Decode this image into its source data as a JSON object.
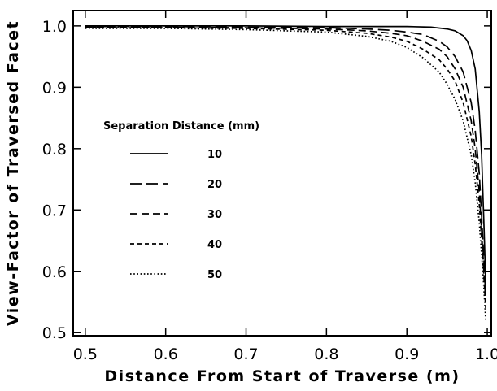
{
  "chart_data": {
    "type": "line",
    "title": "",
    "xlabel": "Distance From Start of Traverse (m)",
    "ylabel": "View-Factor of Traversed Facet",
    "xlim": [
      0.485,
      1.005
    ],
    "ylim": [
      0.495,
      1.025
    ],
    "xticks": [
      0.5,
      0.6,
      0.7,
      0.8,
      0.9,
      1.0
    ],
    "xtick_labels": [
      "0.5",
      "0.6",
      "0.7",
      "0.8",
      "0.9",
      "1.0"
    ],
    "yticks": [
      0.5,
      0.6,
      0.7,
      0.8,
      0.9,
      1.0
    ],
    "ytick_labels": [
      "0.5",
      "0.6",
      "0.7",
      "0.8",
      "0.9",
      "1.0"
    ],
    "grid": false,
    "legend": {
      "title": "Separation Distance (mm)",
      "placement": "center-left"
    },
    "series": [
      {
        "name": "10",
        "line_style": "solid",
        "x": [
          0.5,
          0.6,
          0.7,
          0.8,
          0.9,
          0.93,
          0.95,
          0.96,
          0.97,
          0.975,
          0.98,
          0.985,
          0.99,
          0.993,
          0.996,
          0.998
        ],
        "y": [
          1.0,
          1.0,
          1.0,
          0.999,
          0.999,
          0.998,
          0.995,
          0.992,
          0.984,
          0.976,
          0.96,
          0.93,
          0.86,
          0.79,
          0.67,
          0.58
        ]
      },
      {
        "name": "20",
        "line_style": "long-dash",
        "x": [
          0.5,
          0.6,
          0.7,
          0.8,
          0.85,
          0.88,
          0.9,
          0.92,
          0.94,
          0.95,
          0.96,
          0.97,
          0.98,
          0.985,
          0.99,
          0.995,
          0.998
        ],
        "y": [
          0.999,
          0.999,
          0.998,
          0.997,
          0.995,
          0.993,
          0.99,
          0.986,
          0.975,
          0.966,
          0.95,
          0.925,
          0.875,
          0.83,
          0.76,
          0.64,
          0.56
        ]
      },
      {
        "name": "30",
        "line_style": "medium-dash",
        "x": [
          0.5,
          0.6,
          0.7,
          0.8,
          0.85,
          0.88,
          0.9,
          0.92,
          0.94,
          0.95,
          0.96,
          0.97,
          0.98,
          0.985,
          0.99,
          0.995,
          0.998
        ],
        "y": [
          0.998,
          0.998,
          0.997,
          0.995,
          0.992,
          0.988,
          0.984,
          0.975,
          0.962,
          0.95,
          0.93,
          0.9,
          0.845,
          0.8,
          0.73,
          0.62,
          0.55
        ]
      },
      {
        "name": "40",
        "line_style": "short-dash",
        "x": [
          0.5,
          0.6,
          0.7,
          0.8,
          0.85,
          0.88,
          0.9,
          0.92,
          0.94,
          0.95,
          0.96,
          0.97,
          0.98,
          0.985,
          0.99,
          0.995,
          0.998
        ],
        "y": [
          0.997,
          0.997,
          0.996,
          0.993,
          0.988,
          0.982,
          0.975,
          0.962,
          0.945,
          0.93,
          0.91,
          0.875,
          0.82,
          0.775,
          0.71,
          0.61,
          0.54
        ]
      },
      {
        "name": "50",
        "line_style": "dotted",
        "x": [
          0.5,
          0.6,
          0.7,
          0.8,
          0.85,
          0.88,
          0.9,
          0.92,
          0.94,
          0.95,
          0.96,
          0.97,
          0.98,
          0.985,
          0.99,
          0.995,
          0.998
        ],
        "y": [
          0.996,
          0.996,
          0.994,
          0.99,
          0.983,
          0.975,
          0.965,
          0.948,
          0.925,
          0.905,
          0.88,
          0.845,
          0.79,
          0.745,
          0.68,
          0.59,
          0.52
        ]
      }
    ]
  }
}
